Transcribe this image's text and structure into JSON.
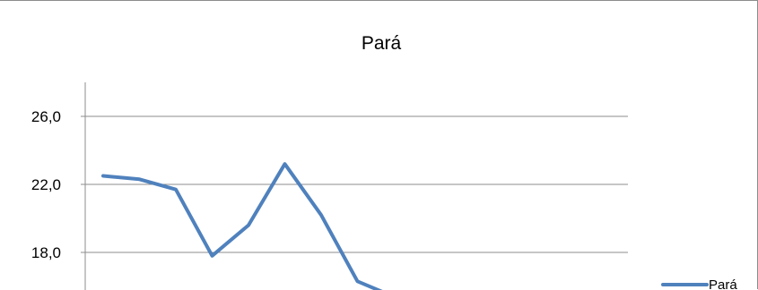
{
  "chart_data": {
    "type": "line",
    "title": "Pará",
    "xlabel": "",
    "ylabel": "",
    "ylim": [
      14.0,
      30.0
    ],
    "visible_ylim": [
      15.4,
      30.0
    ],
    "yticks": [
      18.0,
      22.0,
      26.0
    ],
    "ytick_labels": [
      "18,0",
      "22,0",
      "26,0"
    ],
    "grid": true,
    "legend_position": "bottom-right",
    "series": [
      {
        "name": "Pará",
        "color": "#4f81bd",
        "x": [
          1,
          2,
          3,
          4,
          5,
          6,
          7,
          8,
          9
        ],
        "values": [
          22.5,
          22.3,
          21.7,
          17.8,
          19.6,
          23.2,
          20.2,
          16.3,
          15.4
        ]
      }
    ]
  }
}
